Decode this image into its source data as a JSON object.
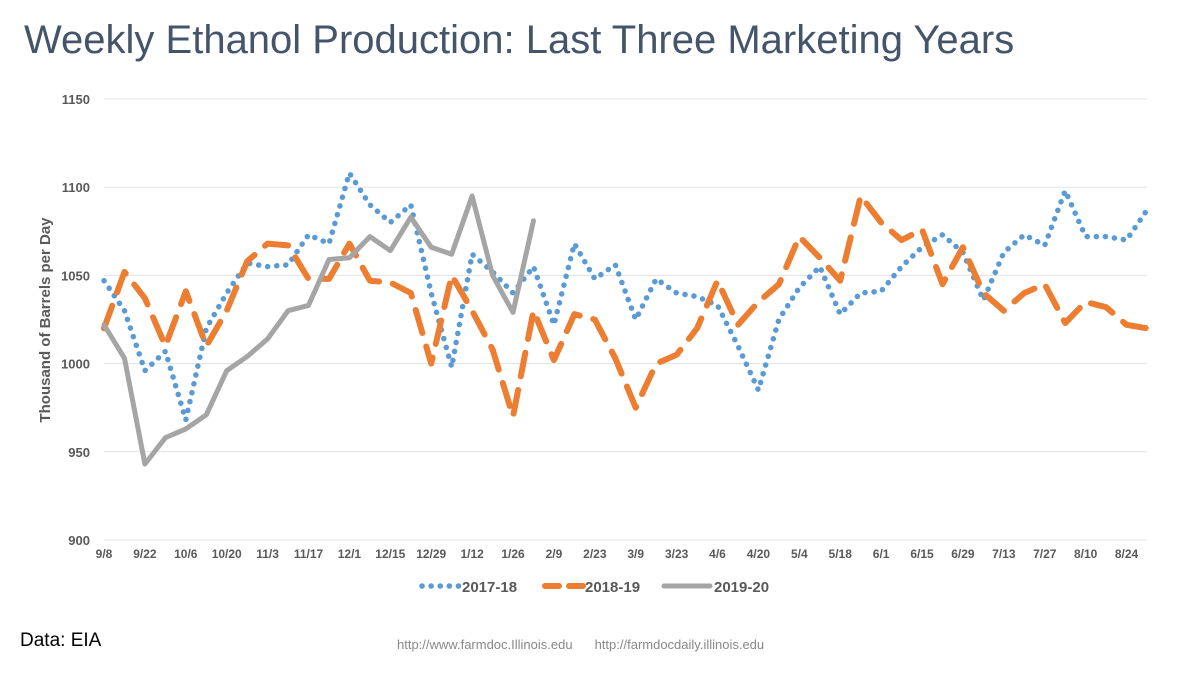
{
  "title": "Weekly Ethanol Production: Last Three Marketing Years",
  "source": "Data: EIA",
  "urls": [
    "http://www.farmdoc.Illinois.edu",
    "http://farmdocdaily.illinois.edu"
  ],
  "chart_data": {
    "type": "line",
    "title": "Weekly Ethanol Production: Last Three Marketing Years",
    "ylabel": "Thousand of Barrels per Day",
    "xlabel": "",
    "ylim": [
      900,
      1150
    ],
    "yticks": [
      900,
      950,
      1000,
      1050,
      1100,
      1150
    ],
    "xtick_labels": [
      "9/8",
      "9/22",
      "10/6",
      "10/20",
      "11/3",
      "11/17",
      "12/1",
      "12/15",
      "12/29",
      "1/12",
      "1/26",
      "2/9",
      "2/23",
      "3/9",
      "3/23",
      "4/6",
      "4/20",
      "5/4",
      "5/18",
      "6/1",
      "6/15",
      "6/29",
      "7/13",
      "7/27",
      "8/10",
      "8/24"
    ],
    "grid": true,
    "legend": "bottom",
    "series": [
      {
        "name": "2017-18",
        "color": "#5b9bd5",
        "style": "dotted",
        "values": [
          1047,
          1030,
          996,
          1007,
          968,
          1020,
          1040,
          1057,
          1055,
          1056,
          1073,
          1068,
          1108,
          1090,
          1080,
          1090,
          1040,
          998,
          1062,
          1052,
          1040,
          1055,
          1022,
          1068,
          1048,
          1056,
          1025,
          1048,
          1040,
          1038,
          1033,
          1010,
          985,
          1025,
          1043,
          1055,
          1028,
          1040,
          1041,
          1055,
          1066,
          1073,
          1063,
          1036,
          1063,
          1073,
          1067,
          1098,
          1072,
          1072,
          1070,
          1087
        ]
      },
      {
        "name": "2018-19",
        "color": "#ed7d31",
        "style": "dashed",
        "values": [
          1020,
          1052,
          1037,
          1010,
          1041,
          1010,
          1030,
          1058,
          1068,
          1067,
          1048,
          1048,
          1068,
          1047,
          1046,
          1040,
          1000,
          1050,
          1030,
          1008,
          970,
          1030,
          1002,
          1028,
          1025,
          1003,
          975,
          1000,
          1005,
          1020,
          1047,
          1022,
          1035,
          1045,
          1072,
          1060,
          1047,
          1095,
          1080,
          1070,
          1076,
          1045,
          1066,
          1040,
          1030,
          1040,
          1045,
          1023,
          1035,
          1032,
          1022,
          1020
        ]
      },
      {
        "name": "2019-20",
        "color": "#a5a5a5",
        "style": "solid",
        "values": [
          1022,
          1003,
          943,
          958,
          963,
          971,
          996,
          1004,
          1014,
          1030,
          1033,
          1059,
          1060,
          1072,
          1064,
          1083,
          1066,
          1062,
          1095,
          1050,
          1029,
          1081
        ]
      }
    ]
  }
}
